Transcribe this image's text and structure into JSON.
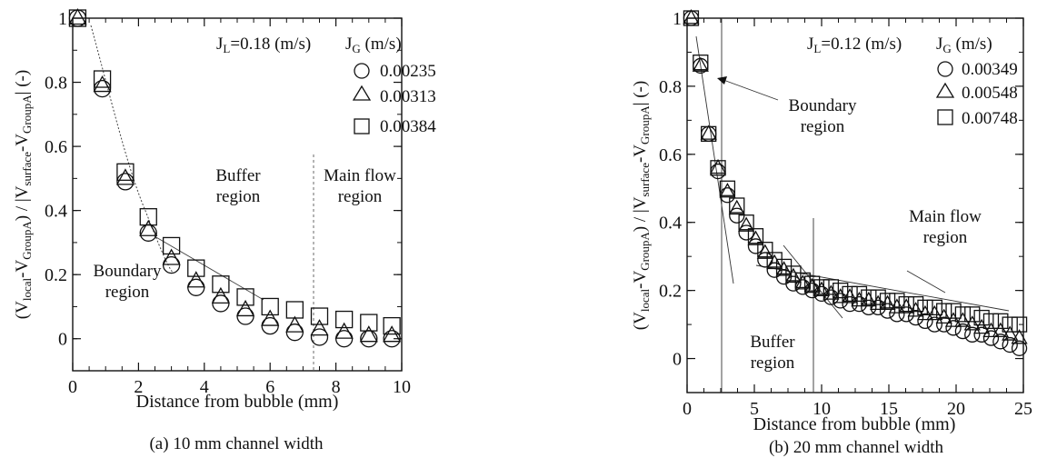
{
  "chart_data": [
    {
      "type": "scatter",
      "caption": "(a) 10 mm channel width",
      "xlabel": "Distance from bubble (mm)",
      "ylabel": {
        "open": "(V",
        "s1": "local",
        "m1": "-V",
        "s2": "GroupA",
        "m2": ") / |V",
        "s3": "surface",
        "m3": "-V",
        "s4": "GroupA",
        "close": "| (-)"
      },
      "xlim": [
        0,
        10
      ],
      "ylim": [
        -0.1,
        1.0
      ],
      "x_ticks": [
        "0",
        "2",
        "4",
        "6",
        "8",
        "10"
      ],
      "y_ticks": [
        "0",
        "0.2",
        "0.4",
        "0.6",
        "0.8",
        "1"
      ],
      "legend": {
        "jl_main": "J",
        "jl_sub": "L",
        "jl_value": "=0.18 (m/s)",
        "jg_main": "J",
        "jg_sub": "G",
        "jg_unit": " (m/s)"
      },
      "series": [
        {
          "name": "0.00235",
          "marker": "circle",
          "points": [
            [
              0.15,
              1.0
            ],
            [
              0.9,
              0.78
            ],
            [
              1.6,
              0.49
            ],
            [
              2.3,
              0.33
            ],
            [
              3.0,
              0.23
            ],
            [
              3.75,
              0.16
            ],
            [
              4.5,
              0.11
            ],
            [
              5.25,
              0.07
            ],
            [
              6.0,
              0.04
            ],
            [
              6.75,
              0.02
            ],
            [
              7.5,
              0.005
            ],
            [
              8.25,
              0.0
            ],
            [
              9.0,
              0.0
            ],
            [
              9.7,
              0.0
            ]
          ]
        },
        {
          "name": "0.00313",
          "marker": "triangle",
          "points": [
            [
              0.15,
              1.0
            ],
            [
              0.9,
              0.79
            ],
            [
              1.6,
              0.5
            ],
            [
              2.3,
              0.34
            ],
            [
              3.0,
              0.25
            ],
            [
              3.75,
              0.18
            ],
            [
              4.5,
              0.13
            ],
            [
              5.25,
              0.09
            ],
            [
              6.0,
              0.06
            ],
            [
              6.75,
              0.04
            ],
            [
              7.5,
              0.03
            ],
            [
              8.25,
              0.02
            ],
            [
              9.0,
              0.01
            ],
            [
              9.7,
              0.01
            ]
          ]
        },
        {
          "name": "0.00384",
          "marker": "square",
          "points": [
            [
              0.15,
              1.0
            ],
            [
              0.9,
              0.81
            ],
            [
              1.6,
              0.52
            ],
            [
              2.3,
              0.38
            ],
            [
              3.0,
              0.29
            ],
            [
              3.75,
              0.22
            ],
            [
              4.5,
              0.17
            ],
            [
              5.25,
              0.13
            ],
            [
              6.0,
              0.1
            ],
            [
              6.75,
              0.09
            ],
            [
              7.5,
              0.07
            ],
            [
              8.25,
              0.06
            ],
            [
              9.0,
              0.05
            ],
            [
              9.7,
              0.04
            ]
          ]
        }
      ],
      "annotations": {
        "buffer_1": "Buffer",
        "buffer_2": "region",
        "main_1": "Main flow",
        "main_2": "region",
        "boundary_1": "Boundary",
        "boundary_2": "region"
      }
    },
    {
      "type": "scatter",
      "caption": "(b) 20 mm channel width",
      "xlabel": "Distance from bubble (mm)",
      "ylabel": {
        "open": "(V",
        "s1": "local",
        "m1": "-V",
        "s2": "GroupA",
        "m2": ") / |V",
        "s3": "surface",
        "m3": "-V",
        "s4": "GroupA",
        "close": "| (-)"
      },
      "xlim": [
        0,
        25
      ],
      "ylim": [
        -0.1,
        1.0
      ],
      "x_ticks": [
        "0",
        "5",
        "10",
        "15",
        "20",
        "25"
      ],
      "y_ticks": [
        "0",
        "0.2",
        "0.4",
        "0.6",
        "0.8",
        "1"
      ],
      "legend": {
        "jl_main": "J",
        "jl_sub": "L",
        "jl_value": "=0.12 (m/s)",
        "jg_main": "J",
        "jg_sub": "G",
        "jg_unit": " (m/s)"
      },
      "series": [
        {
          "name": "0.00349",
          "marker": "circle",
          "points": [
            [
              0.3,
              1.0
            ],
            [
              1.0,
              0.86
            ],
            [
              1.6,
              0.66
            ],
            [
              2.3,
              0.55
            ],
            [
              3.0,
              0.48
            ],
            [
              3.7,
              0.42
            ],
            [
              4.4,
              0.37
            ],
            [
              5.1,
              0.33
            ],
            [
              5.8,
              0.29
            ],
            [
              6.5,
              0.26
            ],
            [
              7.2,
              0.24
            ],
            [
              7.9,
              0.22
            ],
            [
              8.6,
              0.21
            ],
            [
              9.3,
              0.2
            ],
            [
              10.0,
              0.19
            ],
            [
              10.7,
              0.18
            ],
            [
              11.4,
              0.17
            ],
            [
              12.1,
              0.16
            ],
            [
              12.8,
              0.16
            ],
            [
              13.5,
              0.15
            ],
            [
              14.2,
              0.15
            ],
            [
              14.9,
              0.14
            ],
            [
              15.6,
              0.13
            ],
            [
              16.3,
              0.13
            ],
            [
              17.0,
              0.12
            ],
            [
              17.7,
              0.11
            ],
            [
              18.4,
              0.1
            ],
            [
              19.1,
              0.1
            ],
            [
              19.8,
              0.09
            ],
            [
              20.5,
              0.08
            ],
            [
              21.2,
              0.07
            ],
            [
              21.9,
              0.07
            ],
            [
              22.6,
              0.06
            ],
            [
              23.3,
              0.05
            ],
            [
              24.0,
              0.04
            ],
            [
              24.7,
              0.03
            ]
          ]
        },
        {
          "name": "0.00548",
          "marker": "triangle",
          "points": [
            [
              0.3,
              1.0
            ],
            [
              1.0,
              0.86
            ],
            [
              1.6,
              0.66
            ],
            [
              2.3,
              0.56
            ],
            [
              3.0,
              0.49
            ],
            [
              3.7,
              0.44
            ],
            [
              4.4,
              0.39
            ],
            [
              5.1,
              0.35
            ],
            [
              5.8,
              0.31
            ],
            [
              6.5,
              0.28
            ],
            [
              7.2,
              0.26
            ],
            [
              7.9,
              0.24
            ],
            [
              8.6,
              0.22
            ],
            [
              9.3,
              0.21
            ],
            [
              10.0,
              0.2
            ],
            [
              10.7,
              0.19
            ],
            [
              11.4,
              0.18
            ],
            [
              12.1,
              0.18
            ],
            [
              12.8,
              0.17
            ],
            [
              13.5,
              0.17
            ],
            [
              14.2,
              0.16
            ],
            [
              14.9,
              0.16
            ],
            [
              15.6,
              0.15
            ],
            [
              16.3,
              0.15
            ],
            [
              17.0,
              0.14
            ],
            [
              17.7,
              0.13
            ],
            [
              18.4,
              0.13
            ],
            [
              19.1,
              0.12
            ],
            [
              19.8,
              0.11
            ],
            [
              20.5,
              0.11
            ],
            [
              21.2,
              0.1
            ],
            [
              21.9,
              0.09
            ],
            [
              22.6,
              0.08
            ],
            [
              23.3,
              0.08
            ],
            [
              24.0,
              0.07
            ],
            [
              24.7,
              0.06
            ]
          ]
        },
        {
          "name": "0.00748",
          "marker": "square",
          "points": [
            [
              0.3,
              1.0
            ],
            [
              1.0,
              0.87
            ],
            [
              1.6,
              0.66
            ],
            [
              2.3,
              0.56
            ],
            [
              3.0,
              0.5
            ],
            [
              3.7,
              0.45
            ],
            [
              4.4,
              0.4
            ],
            [
              5.1,
              0.36
            ],
            [
              5.8,
              0.32
            ],
            [
              6.5,
              0.29
            ],
            [
              7.2,
              0.27
            ],
            [
              7.9,
              0.25
            ],
            [
              8.6,
              0.23
            ],
            [
              9.3,
              0.22
            ],
            [
              10.0,
              0.21
            ],
            [
              10.7,
              0.21
            ],
            [
              11.4,
              0.2
            ],
            [
              12.1,
              0.19
            ],
            [
              12.8,
              0.19
            ],
            [
              13.5,
              0.18
            ],
            [
              14.2,
              0.18
            ],
            [
              14.9,
              0.17
            ],
            [
              15.6,
              0.17
            ],
            [
              16.3,
              0.16
            ],
            [
              17.0,
              0.16
            ],
            [
              17.7,
              0.15
            ],
            [
              18.4,
              0.15
            ],
            [
              19.1,
              0.14
            ],
            [
              19.8,
              0.14
            ],
            [
              20.5,
              0.13
            ],
            [
              21.2,
              0.13
            ],
            [
              21.9,
              0.12
            ],
            [
              22.6,
              0.11
            ],
            [
              23.3,
              0.11
            ],
            [
              24.0,
              0.1
            ],
            [
              24.7,
              0.1
            ]
          ]
        }
      ],
      "annotations": {
        "boundary_1": "Boundary",
        "boundary_2": "region",
        "main_1": "Main flow",
        "main_2": "region",
        "buffer_1": "Buffer",
        "buffer_2": "region"
      }
    }
  ]
}
